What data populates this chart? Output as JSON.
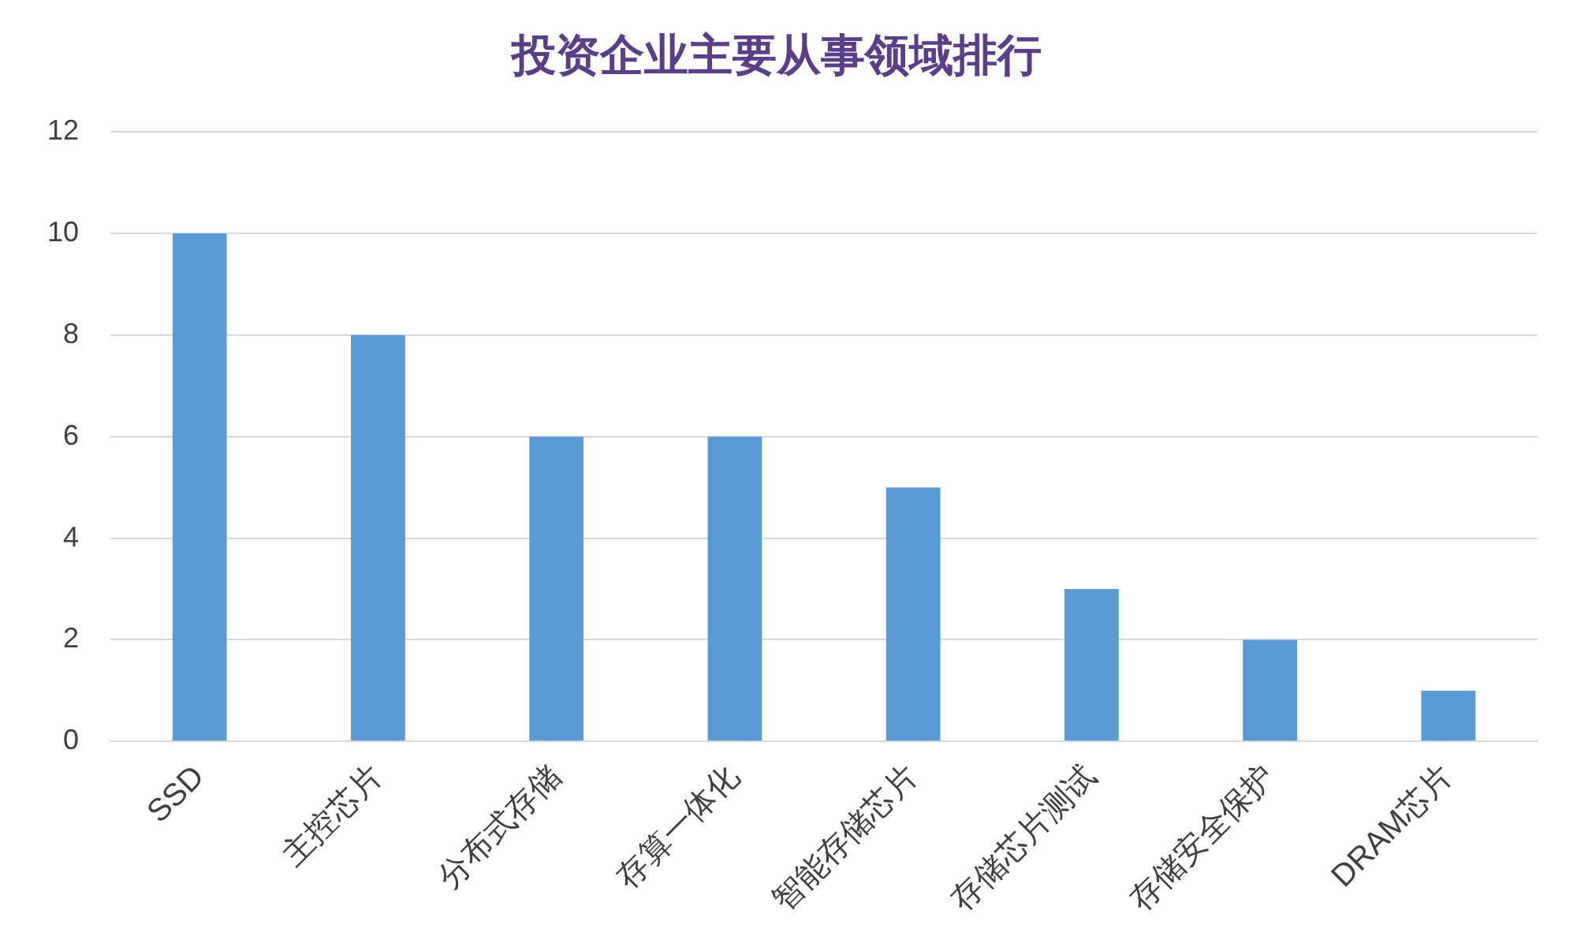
{
  "chart_data": {
    "type": "bar",
    "title": "投资企业主要从事领域排行",
    "categories": [
      "SSD",
      "主控芯片",
      "分布式存储",
      "存算一体化",
      "智能存储芯片",
      "存储芯片测试",
      "存储安全保护",
      "DRAM芯片"
    ],
    "values": [
      10,
      8,
      6,
      6,
      5,
      3,
      2,
      1
    ],
    "color": "#5b9bd5",
    "ylim": [
      0,
      12
    ],
    "yticks": [
      0,
      2,
      4,
      6,
      8,
      10,
      12
    ],
    "grid": "y"
  }
}
